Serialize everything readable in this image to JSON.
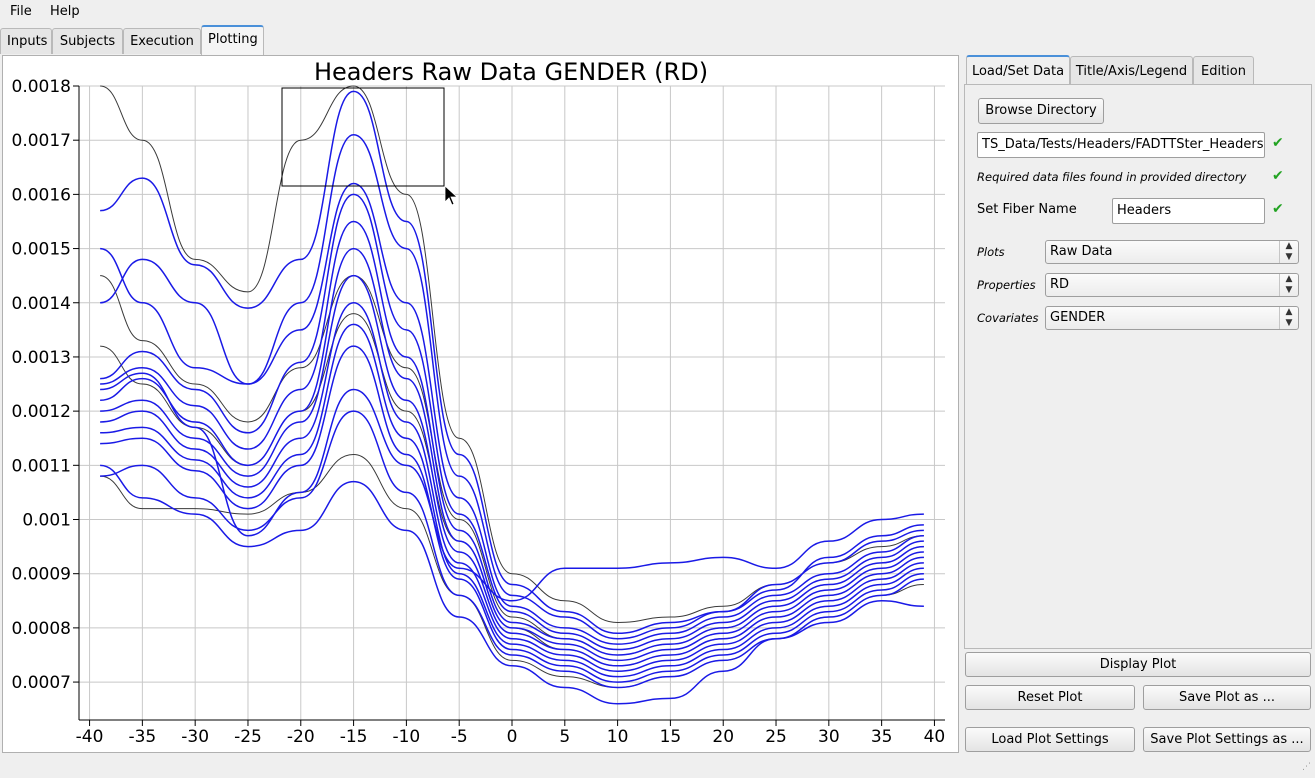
{
  "menu": {
    "file": "File",
    "help": "Help"
  },
  "tabs": [
    "Inputs",
    "Subjects",
    "Execution",
    "Plotting"
  ],
  "right_tabs": [
    "Load/Set Data",
    "Title/Axis/Legend",
    "Edition"
  ],
  "panel": {
    "browse_button": "Browse Directory",
    "directory_value": "TS_Data/Tests/Headers/FADTTSter_Headers",
    "required_files_note": "Required data files found in provided directory",
    "fiber_name_label": "Set Fiber Name",
    "fiber_name_value": "Headers",
    "plots_label": "Plots",
    "plots_value": "Raw Data",
    "properties_label": "Properties",
    "properties_value": "RD",
    "covariates_label": "Covariates",
    "covariates_value": "GENDER",
    "check_mark": "✔"
  },
  "buttons": {
    "display_plot": "Display Plot",
    "reset_plot": "Reset Plot",
    "save_plot_as": "Save Plot as ...",
    "load_plot_settings": "Load Plot Settings",
    "save_plot_settings_as": "Save Plot Settings as ..."
  },
  "colors": {
    "blue_series": "#1a1ae6",
    "gray_series": "#3a3a3a",
    "grid": "#c8c8c8",
    "accent": "#4a90d9"
  },
  "chart_data": {
    "type": "line",
    "title": "Headers Raw Data GENDER (RD)",
    "xlabel": "",
    "ylabel": "",
    "xlim": [
      -41,
      41
    ],
    "ylim": [
      0.00063,
      0.0018
    ],
    "x_ticks": [
      -40,
      -35,
      -30,
      -25,
      -20,
      -15,
      -10,
      -5,
      0,
      5,
      10,
      15,
      20,
      25,
      30,
      35,
      40
    ],
    "y_ticks": [
      0.0007,
      0.0008,
      0.0009,
      0.001,
      0.0011,
      0.0012,
      0.0013,
      0.0014,
      0.0015,
      0.0016,
      0.0017,
      0.0018
    ],
    "y_tick_labels": [
      "0.0007",
      "0.0008",
      "0.0009",
      "0.001",
      "0.0011",
      "0.0012",
      "0.0013",
      "0.0014",
      "0.0015",
      "0.0016",
      "0.0017",
      "0.0018"
    ],
    "x_tick_labels": [
      "-40",
      "-35",
      "-30",
      "-25",
      "-20",
      "-15",
      "-10",
      "-5",
      "0",
      "5",
      "10",
      "15",
      "20",
      "25",
      "30",
      "35",
      "40"
    ],
    "grid": true,
    "x": [
      -39,
      -35,
      -30,
      -25,
      -20,
      -15,
      -10,
      -5,
      0,
      5,
      10,
      15,
      20,
      25,
      30,
      35,
      39
    ],
    "series": [
      {
        "name": "blue-1",
        "group": "blue",
        "values": [
          0.00157,
          0.00163,
          0.00147,
          0.00139,
          0.00148,
          0.00179,
          0.00155,
          0.00112,
          0.00088,
          0.00083,
          0.00079,
          0.00081,
          0.00083,
          0.00087,
          0.00093,
          0.00097,
          0.00099
        ]
      },
      {
        "name": "blue-2",
        "group": "blue",
        "values": [
          0.0015,
          0.0014,
          0.00128,
          0.00125,
          0.0014,
          0.00171,
          0.0015,
          0.00108,
          0.00086,
          0.00082,
          0.00078,
          0.0008,
          0.00083,
          0.00088,
          0.00092,
          0.00096,
          0.00098
        ]
      },
      {
        "name": "blue-3",
        "group": "blue",
        "values": [
          0.0014,
          0.00148,
          0.0014,
          0.00125,
          0.00135,
          0.00162,
          0.0014,
          0.00104,
          0.00084,
          0.0008,
          0.00077,
          0.00079,
          0.00082,
          0.00086,
          0.0009,
          0.00094,
          0.00097
        ]
      },
      {
        "name": "blue-4",
        "group": "blue",
        "values": [
          0.00126,
          0.00131,
          0.00124,
          0.00116,
          0.00129,
          0.0016,
          0.00135,
          0.00101,
          0.00083,
          0.00079,
          0.00076,
          0.00078,
          0.00081,
          0.00085,
          0.00089,
          0.00093,
          0.00096
        ]
      },
      {
        "name": "blue-5",
        "group": "blue",
        "values": [
          0.00125,
          0.00128,
          0.00121,
          0.00113,
          0.00124,
          0.00155,
          0.0013,
          0.00098,
          0.00081,
          0.00078,
          0.00075,
          0.00077,
          0.0008,
          0.00084,
          0.00088,
          0.00092,
          0.00095
        ]
      },
      {
        "name": "blue-6",
        "group": "blue",
        "values": [
          0.00122,
          0.00126,
          0.00118,
          0.0011,
          0.0012,
          0.0015,
          0.00126,
          0.00096,
          0.0008,
          0.00077,
          0.00074,
          0.00076,
          0.00079,
          0.00083,
          0.00087,
          0.00091,
          0.00094
        ]
      },
      {
        "name": "blue-7",
        "group": "blue",
        "values": [
          0.0012,
          0.00122,
          0.00115,
          0.00108,
          0.00118,
          0.00145,
          0.00122,
          0.00094,
          0.00079,
          0.00076,
          0.00073,
          0.00075,
          0.00078,
          0.00082,
          0.00086,
          0.0009,
          0.00093
        ]
      },
      {
        "name": "blue-8",
        "group": "blue",
        "values": [
          0.00118,
          0.0012,
          0.00113,
          0.00106,
          0.00115,
          0.0014,
          0.00118,
          0.00092,
          0.00078,
          0.00075,
          0.00072,
          0.00074,
          0.00077,
          0.00081,
          0.00085,
          0.00089,
          0.00092
        ]
      },
      {
        "name": "blue-9",
        "group": "blue",
        "values": [
          0.00116,
          0.00117,
          0.00111,
          0.00104,
          0.00112,
          0.00136,
          0.00115,
          0.0009,
          0.00077,
          0.00074,
          0.00071,
          0.00073,
          0.00076,
          0.0008,
          0.00084,
          0.00088,
          0.00091
        ]
      },
      {
        "name": "blue-10",
        "group": "blue",
        "values": [
          0.00114,
          0.00115,
          0.00109,
          0.00102,
          0.0011,
          0.00132,
          0.00112,
          0.00089,
          0.00076,
          0.00073,
          0.0007,
          0.00072,
          0.00075,
          0.00079,
          0.00083,
          0.00087,
          0.0009
        ]
      },
      {
        "name": "blue-11",
        "group": "blue",
        "values": [
          0.00108,
          0.0011,
          0.00104,
          0.00098,
          0.00104,
          0.0012,
          0.00105,
          0.00086,
          0.00075,
          0.00072,
          0.00069,
          0.00071,
          0.00074,
          0.00078,
          0.00082,
          0.00086,
          0.00089
        ]
      },
      {
        "name": "blue-12",
        "group": "blue",
        "values": [
          0.0011,
          0.00104,
          0.00101,
          0.00095,
          0.00098,
          0.00107,
          0.00098,
          0.00082,
          0.00073,
          0.00069,
          0.00066,
          0.00067,
          0.00072,
          0.00078,
          0.00081,
          0.00085,
          0.00084
        ]
      },
      {
        "name": "blue-13",
        "group": "blue",
        "values": [
          0.00124,
          0.00127,
          0.00117,
          0.00097,
          0.00105,
          0.00124,
          0.0011,
          0.00091,
          0.00085,
          0.00091,
          0.00091,
          0.00092,
          0.00093,
          0.00091,
          0.00096,
          0.001,
          0.00101
        ]
      },
      {
        "name": "gray-1",
        "group": "gray",
        "values": [
          0.0018,
          0.0017,
          0.00148,
          0.00142,
          0.0017,
          0.0018,
          0.0016,
          0.00115,
          0.0009,
          0.00085,
          0.00081,
          0.00082,
          0.00084,
          0.00088,
          0.00092,
          0.00095,
          0.00097
        ]
      },
      {
        "name": "gray-2",
        "group": "gray",
        "values": [
          0.00145,
          0.00133,
          0.00125,
          0.00118,
          0.00128,
          0.00145,
          0.00128,
          0.001,
          0.00082,
          0.00078,
          0.00075,
          0.00077,
          0.0008,
          0.00084,
          0.00088,
          0.00092,
          0.00095
        ]
      },
      {
        "name": "gray-3",
        "group": "gray",
        "values": [
          0.00132,
          0.00125,
          0.00117,
          0.0011,
          0.0012,
          0.00138,
          0.0012,
          0.00096,
          0.0008,
          0.00076,
          0.00073,
          0.00075,
          0.00078,
          0.00082,
          0.00086,
          0.0009,
          0.00093
        ]
      },
      {
        "name": "gray-4",
        "group": "gray",
        "values": [
          0.00108,
          0.00102,
          0.00102,
          0.00101,
          0.00105,
          0.00112,
          0.00102,
          0.00086,
          0.00074,
          0.00071,
          0.00069,
          0.00071,
          0.00074,
          0.00078,
          0.00082,
          0.00086,
          0.00088
        ]
      }
    ]
  }
}
